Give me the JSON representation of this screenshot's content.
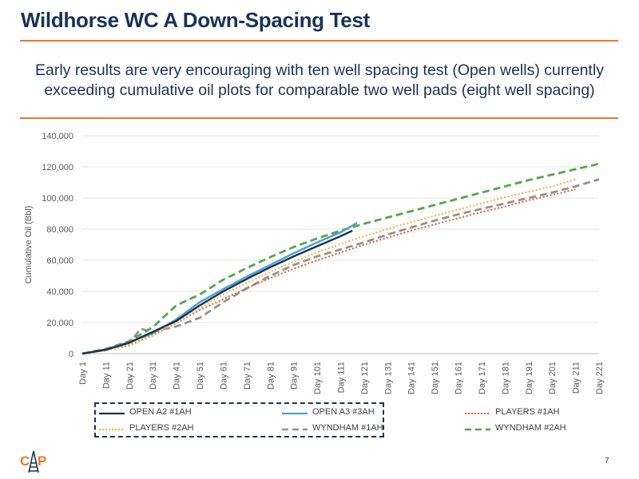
{
  "slide": {
    "title": "Wildhorse WC A Down-Spacing Test",
    "subtitle": "Early results are very encouraging with ten well spacing test (Open wells) currently exceeding cumulative oil plots for comparable two well pads (eight well spacing)",
    "page_number": "7",
    "logo_text": "CAP",
    "accent_color": "#e8782e",
    "title_color": "#1a3355"
  },
  "chart_data": {
    "type": "line",
    "title": "",
    "xlabel": "",
    "ylabel": "Cumulative Oil (Bbl)",
    "categories": [
      "Day 1",
      "Day 11",
      "Day 21",
      "Day 31",
      "Day 41",
      "Day 51",
      "Day 61",
      "Day 71",
      "Day 81",
      "Day 91",
      "Day 101",
      "Day 111",
      "Day 121",
      "Day 131",
      "Day 141",
      "Day 151",
      "Day 161",
      "Day 171",
      "Day 181",
      "Day 191",
      "Day 201",
      "Day 211",
      "Day 221"
    ],
    "yticks": [
      "0",
      "20,000",
      "40,000",
      "60,000",
      "80,000",
      "100,000",
      "120,000",
      "140,000"
    ],
    "ylim": [
      0,
      140000
    ],
    "xlim": [
      1,
      221
    ],
    "grid": true,
    "legend_position": "bottom",
    "series": [
      {
        "name": "OPEN A2 #1AH",
        "color": "#1a2f50",
        "style": "solid",
        "points": [
          [
            1,
            0
          ],
          [
            11,
            2500
          ],
          [
            21,
            7000
          ],
          [
            31,
            14000
          ],
          [
            41,
            21000
          ],
          [
            51,
            31000
          ],
          [
            61,
            40000
          ],
          [
            71,
            48000
          ],
          [
            81,
            55500
          ],
          [
            91,
            62500
          ],
          [
            101,
            69000
          ],
          [
            111,
            75500
          ],
          [
            116,
            79000
          ]
        ]
      },
      {
        "name": "OPEN A3 #3AH",
        "color": "#4a9fd5",
        "style": "solid",
        "points": [
          [
            1,
            0
          ],
          [
            11,
            2800
          ],
          [
            21,
            7500
          ],
          [
            31,
            13000
          ],
          [
            41,
            22000
          ],
          [
            51,
            33000
          ],
          [
            61,
            41500
          ],
          [
            71,
            49500
          ],
          [
            81,
            57000
          ],
          [
            91,
            64500
          ],
          [
            101,
            71500
          ],
          [
            111,
            78000
          ],
          [
            118,
            84000
          ]
        ]
      },
      {
        "name": "PLAYERS #1AH",
        "color": "#e8582e",
        "style": "dotted",
        "points": [
          [
            1,
            0
          ],
          [
            11,
            2000
          ],
          [
            21,
            5500
          ],
          [
            31,
            12000
          ],
          [
            41,
            19500
          ],
          [
            51,
            28000
          ],
          [
            61,
            35000
          ],
          [
            71,
            42000
          ],
          [
            81,
            48500
          ],
          [
            91,
            54500
          ],
          [
            101,
            60000
          ],
          [
            111,
            65000
          ],
          [
            121,
            70000
          ],
          [
            131,
            74500
          ],
          [
            141,
            79000
          ],
          [
            151,
            83000
          ],
          [
            161,
            87000
          ],
          [
            171,
            91000
          ],
          [
            181,
            94500
          ],
          [
            191,
            98500
          ],
          [
            201,
            102000
          ],
          [
            211,
            105500
          ]
        ]
      },
      {
        "name": "PLAYERS #2AH",
        "color": "#f5b23a",
        "style": "dotted",
        "points": [
          [
            1,
            0
          ],
          [
            11,
            2000
          ],
          [
            21,
            5000
          ],
          [
            31,
            11500
          ],
          [
            41,
            19500
          ],
          [
            51,
            29000
          ],
          [
            61,
            38000
          ],
          [
            71,
            45500
          ],
          [
            81,
            52500
          ],
          [
            91,
            59000
          ],
          [
            101,
            65000
          ],
          [
            111,
            70500
          ],
          [
            121,
            75500
          ],
          [
            131,
            80000
          ],
          [
            141,
            84500
          ],
          [
            151,
            88500
          ],
          [
            161,
            92500
          ],
          [
            171,
            96500
          ],
          [
            181,
            100500
          ],
          [
            191,
            104000
          ],
          [
            201,
            107500
          ],
          [
            211,
            112000
          ]
        ]
      },
      {
        "name": "WYNDHAM #1AH",
        "color": "#929292",
        "style": "dashed",
        "points": [
          [
            1,
            0
          ],
          [
            11,
            2500
          ],
          [
            21,
            7000
          ],
          [
            26,
            16000
          ],
          [
            31,
            14000
          ],
          [
            41,
            17500
          ],
          [
            51,
            23000
          ],
          [
            61,
            33000
          ],
          [
            71,
            42000
          ],
          [
            81,
            50000
          ],
          [
            91,
            57000
          ],
          [
            101,
            62500
          ],
          [
            111,
            67000
          ],
          [
            121,
            71500
          ],
          [
            131,
            76500
          ],
          [
            141,
            81000
          ],
          [
            151,
            85500
          ],
          [
            161,
            89500
          ],
          [
            171,
            93000
          ],
          [
            181,
            96500
          ],
          [
            191,
            100000
          ],
          [
            201,
            103500
          ],
          [
            211,
            107500
          ],
          [
            221,
            112000
          ]
        ]
      },
      {
        "name": "WYNDHAM #2AH",
        "color": "#52a845",
        "style": "dashed",
        "points": [
          [
            1,
            0
          ],
          [
            11,
            3000
          ],
          [
            21,
            8000
          ],
          [
            31,
            17000
          ],
          [
            41,
            31000
          ],
          [
            51,
            38000
          ],
          [
            61,
            47500
          ],
          [
            71,
            55000
          ],
          [
            81,
            62000
          ],
          [
            91,
            68500
          ],
          [
            101,
            74000
          ],
          [
            111,
            79000
          ],
          [
            121,
            83500
          ],
          [
            131,
            87500
          ],
          [
            141,
            91500
          ],
          [
            151,
            95500
          ],
          [
            161,
            99500
          ],
          [
            171,
            103500
          ],
          [
            181,
            107500
          ],
          [
            191,
            111500
          ],
          [
            201,
            115000
          ],
          [
            211,
            118500
          ],
          [
            221,
            122000
          ]
        ]
      }
    ]
  }
}
